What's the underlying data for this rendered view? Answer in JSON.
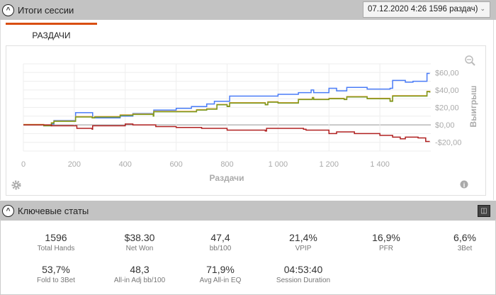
{
  "session": {
    "title": "Итоги сессии",
    "selector_value": "07.12.2020 4:26 1596 раздач)"
  },
  "tabs": [
    {
      "label": "РАЗДАЧИ"
    }
  ],
  "chart_data": {
    "type": "line",
    "xlabel": "Раздачи",
    "ylabel": "Выигрыш",
    "xlim": [
      0,
      1600
    ],
    "ylim": [
      -30,
      70
    ],
    "x_ticks": [
      0,
      200,
      400,
      600,
      800,
      1000,
      1200,
      1400
    ],
    "x_tick_labels": [
      "0",
      "200",
      "400",
      "600",
      "800",
      "1 000",
      "1 200",
      "1 400"
    ],
    "y_ticks": [
      -20,
      0,
      20,
      40,
      60
    ],
    "y_tick_labels": [
      "-$20,00",
      "$0,00",
      "$20,00",
      "$40,00",
      "$60,00"
    ],
    "grid": true,
    "series": [
      {
        "name": "blue",
        "color": "#4a7cf7",
        "points": [
          [
            0,
            0
          ],
          [
            80,
            -1
          ],
          [
            110,
            1
          ],
          [
            120,
            5
          ],
          [
            200,
            5
          ],
          [
            205,
            14
          ],
          [
            270,
            14
          ],
          [
            272,
            8
          ],
          [
            350,
            8
          ],
          [
            380,
            10
          ],
          [
            430,
            13
          ],
          [
            510,
            13
          ],
          [
            512,
            17
          ],
          [
            600,
            19
          ],
          [
            660,
            21
          ],
          [
            720,
            24
          ],
          [
            750,
            27
          ],
          [
            800,
            27
          ],
          [
            810,
            33
          ],
          [
            950,
            33
          ],
          [
            1000,
            35
          ],
          [
            1080,
            37
          ],
          [
            1130,
            40
          ],
          [
            1140,
            37
          ],
          [
            1200,
            42
          ],
          [
            1230,
            39
          ],
          [
            1270,
            43
          ],
          [
            1350,
            41
          ],
          [
            1440,
            42
          ],
          [
            1450,
            51
          ],
          [
            1500,
            49
          ],
          [
            1530,
            50
          ],
          [
            1575,
            50
          ],
          [
            1585,
            59
          ],
          [
            1596,
            59
          ]
        ]
      },
      {
        "name": "orange",
        "color": "#e8a040",
        "points": [
          [
            0,
            0.5
          ],
          [
            80,
            -0.5
          ],
          [
            110,
            2.5
          ],
          [
            120,
            4.5
          ],
          [
            200,
            4.5
          ],
          [
            205,
            9.5
          ],
          [
            270,
            8.5
          ],
          [
            280,
            9.5
          ],
          [
            350,
            9.5
          ],
          [
            380,
            11.5
          ],
          [
            430,
            12.5
          ],
          [
            510,
            10.5
          ],
          [
            512,
            15.5
          ],
          [
            600,
            15.5
          ],
          [
            680,
            17.5
          ],
          [
            720,
            18.5
          ],
          [
            760,
            23.5
          ],
          [
            800,
            21.5
          ],
          [
            810,
            25.5
          ],
          [
            900,
            25.5
          ],
          [
            950,
            23.5
          ],
          [
            960,
            26.5
          ],
          [
            1000,
            25.5
          ],
          [
            1080,
            29.5
          ],
          [
            1130,
            29.5
          ],
          [
            1135,
            31.5
          ],
          [
            1140,
            29.5
          ],
          [
            1200,
            30.5
          ],
          [
            1260,
            29.5
          ],
          [
            1270,
            32.5
          ],
          [
            1350,
            30.5
          ],
          [
            1440,
            27.5
          ],
          [
            1450,
            33.5
          ],
          [
            1500,
            33.5
          ],
          [
            1575,
            33.5
          ],
          [
            1585,
            38.5
          ],
          [
            1596,
            37.5
          ]
        ]
      },
      {
        "name": "green",
        "color": "#7a9a20",
        "points": [
          [
            0,
            0
          ],
          [
            80,
            -1
          ],
          [
            110,
            2
          ],
          [
            120,
            4
          ],
          [
            200,
            4
          ],
          [
            205,
            9
          ],
          [
            270,
            8
          ],
          [
            280,
            9
          ],
          [
            350,
            9
          ],
          [
            380,
            11
          ],
          [
            430,
            12
          ],
          [
            510,
            10
          ],
          [
            512,
            15
          ],
          [
            600,
            15
          ],
          [
            680,
            17
          ],
          [
            720,
            18
          ],
          [
            760,
            23
          ],
          [
            800,
            21
          ],
          [
            810,
            25
          ],
          [
            900,
            25
          ],
          [
            950,
            23
          ],
          [
            960,
            26
          ],
          [
            1000,
            25
          ],
          [
            1080,
            29
          ],
          [
            1130,
            29
          ],
          [
            1135,
            31
          ],
          [
            1140,
            29
          ],
          [
            1200,
            30
          ],
          [
            1260,
            29
          ],
          [
            1270,
            32
          ],
          [
            1350,
            30
          ],
          [
            1440,
            27
          ],
          [
            1450,
            33
          ],
          [
            1500,
            33
          ],
          [
            1575,
            33
          ],
          [
            1585,
            38
          ],
          [
            1596,
            37
          ]
        ]
      },
      {
        "name": "red",
        "color": "#b02020",
        "points": [
          [
            0,
            0
          ],
          [
            80,
            0
          ],
          [
            110,
            -1
          ],
          [
            200,
            -1
          ],
          [
            210,
            -4
          ],
          [
            270,
            -5
          ],
          [
            272,
            -1
          ],
          [
            400,
            1
          ],
          [
            430,
            0
          ],
          [
            520,
            -2
          ],
          [
            600,
            -3
          ],
          [
            700,
            -4
          ],
          [
            780,
            -4
          ],
          [
            800,
            -6
          ],
          [
            950,
            -7
          ],
          [
            955,
            -4
          ],
          [
            1100,
            -5
          ],
          [
            1110,
            -6
          ],
          [
            1200,
            -10
          ],
          [
            1230,
            -8
          ],
          [
            1300,
            -10
          ],
          [
            1400,
            -12
          ],
          [
            1450,
            -14
          ],
          [
            1480,
            -16
          ],
          [
            1500,
            -14
          ],
          [
            1550,
            -15
          ],
          [
            1580,
            -19
          ],
          [
            1596,
            -19
          ]
        ]
      }
    ]
  },
  "key_stats": {
    "title": "Ключевые статы",
    "items": [
      {
        "value": "1596",
        "label": "Total Hands"
      },
      {
        "value": "$38.30",
        "label": "Net Won"
      },
      {
        "value": "47,4",
        "label": "bb/100"
      },
      {
        "value": "21,4%",
        "label": "VPIP"
      },
      {
        "value": "16,9%",
        "label": "PFR"
      },
      {
        "value": "6,6%",
        "label": "3Bet"
      },
      {
        "value": "53,7%",
        "label": "Fold to 3Bet"
      },
      {
        "value": "48,3",
        "label": "All-in Adj bb/100"
      },
      {
        "value": "71,9%",
        "label": "Avg All-in EQ"
      },
      {
        "value": "04:53:40",
        "label": "Session Duration"
      }
    ]
  }
}
